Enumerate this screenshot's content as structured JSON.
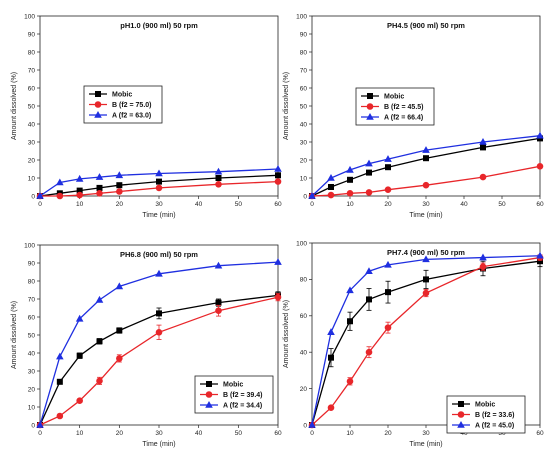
{
  "chart_data": [
    {
      "type": "line",
      "title": "pH1.0 (900 ml) 50 rpm",
      "xlabel": "Time (min)",
      "ylabel": "Amount dissolved (%)",
      "xlim": [
        0,
        60
      ],
      "ylim": [
        0,
        100
      ],
      "x_ticks": [
        0,
        10,
        20,
        30,
        40,
        50,
        60
      ],
      "y_ticks": [
        0,
        10,
        20,
        30,
        40,
        50,
        60,
        70,
        80,
        90,
        100
      ],
      "legend_position": "middle-left",
      "x": [
        0,
        5,
        10,
        15,
        20,
        30,
        45,
        60
      ],
      "series": [
        {
          "name": "Mobic",
          "marker": "square",
          "color": "#000000",
          "values": [
            0,
            1.5,
            3,
            4.5,
            6,
            8,
            10,
            11.5
          ]
        },
        {
          "name": "B (f2 = 75.0)",
          "marker": "circle",
          "color": "#e8262a",
          "values": [
            0,
            0,
            0.5,
            1.5,
            2.5,
            4.5,
            6.5,
            8
          ]
        },
        {
          "name": "A (f2 = 63.0)",
          "marker": "triangle",
          "color": "#1f2fe0",
          "values": [
            0,
            7.5,
            9.5,
            10.5,
            11.5,
            12.5,
            13.5,
            15
          ]
        }
      ]
    },
    {
      "type": "line",
      "title": "PH4.5 (900 ml) 50 rpm",
      "xlabel": "Time (min)",
      "ylabel": "Amount dissolved (%)",
      "xlim": [
        0,
        60
      ],
      "ylim": [
        0,
        100
      ],
      "x_ticks": [
        0,
        10,
        20,
        30,
        40,
        50,
        60
      ],
      "y_ticks": [
        0,
        10,
        20,
        30,
        40,
        50,
        60,
        70,
        80,
        90,
        100
      ],
      "legend_position": "middle-right",
      "x": [
        0,
        5,
        10,
        15,
        20,
        30,
        45,
        60
      ],
      "series": [
        {
          "name": "Mobic",
          "marker": "square",
          "color": "#000000",
          "values": [
            0,
            5,
            9,
            13,
            16,
            21,
            27,
            32
          ]
        },
        {
          "name": "B (f2 = 45.5)",
          "marker": "circle",
          "color": "#e8262a",
          "values": [
            0,
            0.5,
            1.5,
            2,
            3.5,
            6,
            10.5,
            16.5
          ]
        },
        {
          "name": "A (f2 = 66.4)",
          "marker": "triangle",
          "color": "#1f2fe0",
          "values": [
            0,
            10,
            14.5,
            18,
            20.5,
            25.5,
            30,
            33.5
          ]
        }
      ]
    },
    {
      "type": "line",
      "title": "PH6.8 (900 ml) 50 rpm",
      "xlabel": "Time (min)",
      "ylabel": "Amount dissolved (%)",
      "xlim": [
        0,
        60
      ],
      "ylim": [
        0,
        100
      ],
      "x_ticks": [
        0,
        10,
        20,
        30,
        40,
        50,
        60
      ],
      "y_ticks": [
        0,
        10,
        20,
        30,
        40,
        50,
        60,
        70,
        80,
        90,
        100
      ],
      "legend_position": "bottom-right",
      "x": [
        0,
        5,
        10,
        15,
        20,
        30,
        45,
        60
      ],
      "series": [
        {
          "name": "Mobic",
          "marker": "square",
          "color": "#000000",
          "values": [
            0,
            24,
            38.5,
            46.5,
            52.5,
            62,
            68,
            72
          ],
          "errors": [
            0,
            1,
            1.5,
            1.5,
            1.5,
            3,
            2,
            2
          ]
        },
        {
          "name": "B (f2 = 39.4)",
          "marker": "circle",
          "color": "#e8262a",
          "values": [
            0,
            5,
            13.5,
            24.5,
            37,
            51.5,
            63.5,
            71
          ],
          "errors": [
            0,
            0.5,
            1,
            2,
            2,
            4,
            3,
            2
          ]
        },
        {
          "name": "A (f2 = 34.4)",
          "marker": "triangle",
          "color": "#1f2fe0",
          "values": [
            0,
            38,
            59,
            69.5,
            77,
            84,
            88.5,
            90.5
          ]
        }
      ]
    },
    {
      "type": "line",
      "title": "PH7.4 (900 ml) 50 rpm",
      "xlabel": "Time (min)",
      "ylabel": "Amount dissolved (%)",
      "xlim": [
        0,
        60
      ],
      "ylim": [
        0,
        100
      ],
      "x_ticks": [
        0,
        10,
        20,
        30,
        40,
        50,
        60
      ],
      "y_ticks": [
        0,
        20,
        40,
        60,
        80,
        100
      ],
      "legend_position": "bottom-right",
      "x": [
        0,
        5,
        10,
        15,
        20,
        30,
        45,
        60
      ],
      "series": [
        {
          "name": "Mobic",
          "marker": "square",
          "color": "#000000",
          "values": [
            0,
            37,
            57,
            69,
            73,
            80,
            86,
            90
          ],
          "errors": [
            0,
            5,
            5,
            6,
            6,
            5,
            4,
            3
          ]
        },
        {
          "name": "B (f2 = 33.6)",
          "marker": "circle",
          "color": "#e8262a",
          "values": [
            0,
            9.5,
            24,
            40,
            53.5,
            72.5,
            87,
            92
          ],
          "errors": [
            0,
            1,
            2,
            3,
            3,
            2,
            2,
            1.5
          ]
        },
        {
          "name": "A (f2 = 45.0)",
          "marker": "triangle",
          "color": "#1f2fe0",
          "values": [
            0,
            51,
            74,
            84.5,
            88,
            91,
            92,
            93
          ]
        }
      ]
    }
  ]
}
